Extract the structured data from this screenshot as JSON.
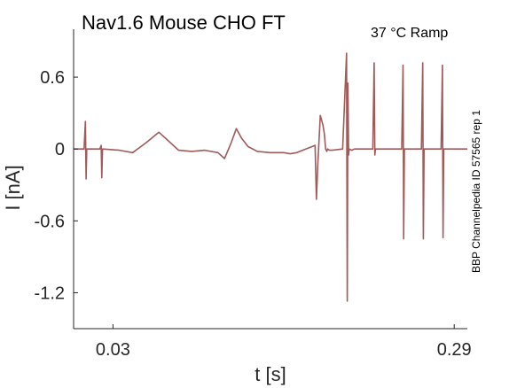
{
  "chart_data": {
    "type": "line",
    "title": "Nav1.6  Mouse  CHO FT",
    "subtitle": "37 °C  Ramp",
    "side_note": "BBP Channelpedia ID 57565 rep 1",
    "xlabel": "t [s]",
    "ylabel": "I [nA]",
    "xlim": [
      0.0,
      0.3
    ],
    "ylim": [
      -1.5,
      1.0
    ],
    "x_ticks": [
      {
        "value": 0.03,
        "label": "0.03"
      },
      {
        "value": 0.29,
        "label": "0.29"
      }
    ],
    "y_ticks": [
      {
        "value": 0.6,
        "label": "0.6"
      },
      {
        "value": 0,
        "label": "0"
      },
      {
        "value": -0.6,
        "label": "-0.6"
      },
      {
        "value": -1.2,
        "label": "-1.2"
      }
    ],
    "grid": false,
    "colors": {
      "trace": "#a05a5a",
      "axis": "#262626"
    },
    "series": [
      {
        "x": [
          0.0,
          0.008,
          0.009,
          0.0095,
          0.01,
          0.02,
          0.021,
          0.0215,
          0.022,
          0.035,
          0.045,
          0.055,
          0.065,
          0.07,
          0.075,
          0.08,
          0.09,
          0.1,
          0.11,
          0.115,
          0.12,
          0.124,
          0.128,
          0.133,
          0.14,
          0.15,
          0.16,
          0.165,
          0.17,
          0.184,
          0.185,
          0.186,
          0.188,
          0.19,
          0.191,
          0.192,
          0.193,
          0.1935,
          0.195,
          0.197,
          0.205,
          0.208,
          0.2085,
          0.209,
          0.2095,
          0.21,
          0.212,
          0.214,
          0.228,
          0.229,
          0.2295,
          0.23,
          0.232,
          0.234,
          0.25,
          0.251,
          0.2515,
          0.252,
          0.254,
          0.256,
          0.265,
          0.266,
          0.2665,
          0.267,
          0.269,
          0.271,
          0.28,
          0.281,
          0.2815,
          0.282,
          0.284,
          0.286,
          0.3
        ],
        "y": [
          0.0,
          0.0,
          0.23,
          -0.25,
          0.0,
          0.0,
          0.03,
          -0.24,
          0.0,
          -0.01,
          -0.03,
          0.05,
          0.14,
          0.09,
          0.04,
          -0.01,
          -0.02,
          -0.01,
          -0.03,
          -0.08,
          0.05,
          0.17,
          0.09,
          0.02,
          -0.02,
          -0.03,
          -0.03,
          -0.04,
          -0.03,
          0.03,
          -0.42,
          -0.14,
          0.28,
          0.2,
          0.13,
          0.0,
          -0.02,
          0.0,
          -0.01,
          -0.01,
          0.0,
          0.8,
          -1.27,
          0.55,
          -0.05,
          0.0,
          -0.01,
          0.0,
          0.0,
          0.72,
          -0.05,
          0.0,
          0.0,
          0.0,
          0.0,
          0.7,
          -0.75,
          0.0,
          0.0,
          0.0,
          0.0,
          0.72,
          -0.75,
          0.0,
          0.0,
          0.0,
          0.0,
          0.7,
          -0.74,
          0.0,
          0.0,
          0.0,
          0.0
        ]
      }
    ]
  }
}
